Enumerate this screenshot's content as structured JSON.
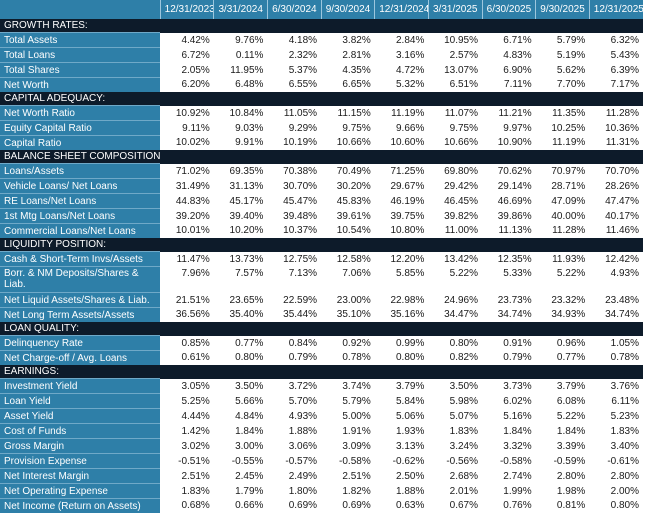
{
  "columns": [
    "12/31/2023",
    "3/31/2024",
    "6/30/2024",
    "9/30/2024",
    "12/31/2024",
    "3/31/2025",
    "6/30/2025",
    "9/30/2025",
    "12/31/2025"
  ],
  "sections": [
    {
      "title": "GROWTH RATES:",
      "rows": [
        {
          "label": "Total Assets",
          "values": [
            "4.42%",
            "9.76%",
            "4.18%",
            "3.82%",
            "2.84%",
            "10.95%",
            "6.71%",
            "5.79%",
            "6.32%"
          ]
        },
        {
          "label": "Total Loans",
          "values": [
            "6.72%",
            "0.11%",
            "2.32%",
            "2.81%",
            "3.16%",
            "2.57%",
            "4.83%",
            "5.19%",
            "5.43%"
          ]
        },
        {
          "label": "Total Shares",
          "values": [
            "2.05%",
            "11.95%",
            "5.37%",
            "4.35%",
            "4.72%",
            "13.07%",
            "6.90%",
            "5.62%",
            "6.39%"
          ]
        },
        {
          "label": "Net Worth",
          "values": [
            "6.20%",
            "6.48%",
            "6.55%",
            "6.65%",
            "5.32%",
            "6.51%",
            "7.11%",
            "7.70%",
            "7.17%"
          ]
        }
      ]
    },
    {
      "title": "CAPITAL ADEQUACY:",
      "rows": [
        {
          "label": "Net Worth Ratio",
          "values": [
            "10.92%",
            "10.84%",
            "11.05%",
            "11.15%",
            "11.19%",
            "11.07%",
            "11.21%",
            "11.35%",
            "11.28%"
          ]
        },
        {
          "label": "Equity Capital Ratio",
          "values": [
            "9.11%",
            "9.03%",
            "9.29%",
            "9.75%",
            "9.66%",
            "9.75%",
            "9.97%",
            "10.25%",
            "10.36%"
          ]
        },
        {
          "label": "Capital Ratio",
          "values": [
            "10.02%",
            "9.91%",
            "10.19%",
            "10.66%",
            "10.60%",
            "10.66%",
            "10.90%",
            "11.19%",
            "11.31%"
          ]
        }
      ]
    },
    {
      "title": "BALANCE SHEET COMPOSITION:",
      "rows": [
        {
          "label": "Loans/Assets",
          "values": [
            "71.02%",
            "69.35%",
            "70.38%",
            "70.49%",
            "71.25%",
            "69.80%",
            "70.62%",
            "70.97%",
            "70.70%"
          ]
        },
        {
          "label": "Vehicle Loans/ Net Loans",
          "values": [
            "31.49%",
            "31.13%",
            "30.70%",
            "30.20%",
            "29.67%",
            "29.42%",
            "29.14%",
            "28.71%",
            "28.26%"
          ]
        },
        {
          "label": "RE Loans/Net Loans",
          "values": [
            "44.83%",
            "45.17%",
            "45.47%",
            "45.83%",
            "46.19%",
            "46.45%",
            "46.69%",
            "47.09%",
            "47.47%"
          ]
        },
        {
          "label": "1st Mtg Loans/Net Loans",
          "values": [
            "39.20%",
            "39.40%",
            "39.48%",
            "39.61%",
            "39.75%",
            "39.82%",
            "39.86%",
            "40.00%",
            "40.17%"
          ]
        },
        {
          "label": "Commercial Loans/Net Loans",
          "values": [
            "10.01%",
            "10.20%",
            "10.37%",
            "10.54%",
            "10.80%",
            "11.00%",
            "11.13%",
            "11.28%",
            "11.46%"
          ]
        }
      ]
    },
    {
      "title": "LIQUIDITY POSITION:",
      "rows": [
        {
          "label": "Cash & Short-Term Invs/Assets",
          "values": [
            "11.47%",
            "13.73%",
            "12.75%",
            "12.58%",
            "12.20%",
            "13.42%",
            "12.35%",
            "11.93%",
            "12.42%"
          ]
        },
        {
          "label": "Borr. & NM Deposits/Shares & Liab.",
          "tall": true,
          "values": [
            "7.96%",
            "7.57%",
            "7.13%",
            "7.06%",
            "5.85%",
            "5.22%",
            "5.33%",
            "5.22%",
            "4.93%"
          ]
        },
        {
          "label": "Net Liquid Assets/Shares & Liab.",
          "values": [
            "21.51%",
            "23.65%",
            "22.59%",
            "23.00%",
            "22.98%",
            "24.96%",
            "23.73%",
            "23.32%",
            "23.48%"
          ]
        },
        {
          "label": "Net Long Term Assets/Assets",
          "values": [
            "36.56%",
            "35.40%",
            "35.44%",
            "35.10%",
            "35.16%",
            "34.47%",
            "34.74%",
            "34.93%",
            "34.74%"
          ]
        }
      ]
    },
    {
      "title": "LOAN QUALITY:",
      "rows": [
        {
          "label": "Delinquency Rate",
          "values": [
            "0.85%",
            "0.77%",
            "0.84%",
            "0.92%",
            "0.99%",
            "0.80%",
            "0.91%",
            "0.96%",
            "1.05%"
          ]
        },
        {
          "label": "Net Charge-off / Avg. Loans",
          "values": [
            "0.61%",
            "0.80%",
            "0.79%",
            "0.78%",
            "0.80%",
            "0.82%",
            "0.79%",
            "0.77%",
            "0.78%"
          ]
        }
      ]
    },
    {
      "title": "EARNINGS:",
      "rows": [
        {
          "label": "Investment Yield",
          "values": [
            "3.05%",
            "3.50%",
            "3.72%",
            "3.74%",
            "3.79%",
            "3.50%",
            "3.73%",
            "3.79%",
            "3.76%"
          ]
        },
        {
          "label": "Loan Yield",
          "values": [
            "5.25%",
            "5.66%",
            "5.70%",
            "5.79%",
            "5.84%",
            "5.98%",
            "6.02%",
            "6.08%",
            "6.11%"
          ]
        },
        {
          "label": "Asset Yield",
          "values": [
            "4.44%",
            "4.84%",
            "4.93%",
            "5.00%",
            "5.06%",
            "5.07%",
            "5.16%",
            "5.22%",
            "5.23%"
          ]
        },
        {
          "label": "Cost of Funds",
          "values": [
            "1.42%",
            "1.84%",
            "1.88%",
            "1.91%",
            "1.93%",
            "1.83%",
            "1.84%",
            "1.84%",
            "1.83%"
          ]
        },
        {
          "label": "Gross Margin",
          "values": [
            "3.02%",
            "3.00%",
            "3.06%",
            "3.09%",
            "3.13%",
            "3.24%",
            "3.32%",
            "3.39%",
            "3.40%"
          ]
        },
        {
          "label": "Provision Expense",
          "values": [
            "-0.51%",
            "-0.55%",
            "-0.57%",
            "-0.58%",
            "-0.62%",
            "-0.56%",
            "-0.58%",
            "-0.59%",
            "-0.61%"
          ]
        },
        {
          "label": "Net Interest Margin",
          "values": [
            "2.51%",
            "2.45%",
            "2.49%",
            "2.51%",
            "2.50%",
            "2.68%",
            "2.74%",
            "2.80%",
            "2.80%"
          ]
        },
        {
          "label": "Net Operating Expense",
          "values": [
            "1.83%",
            "1.79%",
            "1.80%",
            "1.82%",
            "1.88%",
            "2.01%",
            "1.99%",
            "1.98%",
            "2.00%"
          ]
        },
        {
          "label": "Net Income (Return on Assets)",
          "values": [
            "0.68%",
            "0.66%",
            "0.69%",
            "0.69%",
            "0.63%",
            "0.67%",
            "0.76%",
            "0.81%",
            "0.80%"
          ]
        }
      ]
    }
  ]
}
